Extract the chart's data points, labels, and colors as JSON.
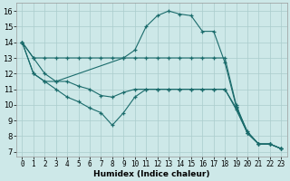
{
  "xlabel": "Humidex (Indice chaleur)",
  "bg_color": "#cde8e8",
  "grid_color": "#aacccc",
  "line_color": "#1a6b6b",
  "xlim": [
    -0.5,
    23.5
  ],
  "ylim": [
    6.7,
    16.5
  ],
  "xticks": [
    0,
    1,
    2,
    3,
    4,
    5,
    6,
    7,
    8,
    9,
    10,
    11,
    12,
    13,
    14,
    15,
    16,
    17,
    18,
    19,
    20,
    21,
    22,
    23
  ],
  "yticks": [
    7,
    8,
    9,
    10,
    11,
    12,
    13,
    14,
    15,
    16
  ],
  "series1": {
    "x": [
      0,
      1,
      2,
      3,
      4,
      5,
      6,
      7,
      8,
      9,
      10,
      11,
      12,
      13,
      14,
      15,
      16,
      17,
      18,
      19,
      20,
      21,
      22,
      23
    ],
    "y": [
      14,
      13,
      13,
      13,
      13,
      13,
      13,
      13,
      13,
      13,
      13,
      13,
      13,
      13,
      13,
      13,
      13,
      13,
      13,
      10,
      8.2,
      7.5,
      7.5,
      7.2
    ]
  },
  "series2": {
    "x": [
      0,
      1,
      2,
      3,
      4,
      5,
      6,
      7,
      8,
      9,
      10,
      11,
      12,
      13,
      14,
      15,
      16,
      17,
      18,
      19,
      20,
      21,
      22,
      23
    ],
    "y": [
      14,
      12,
      11.5,
      11.5,
      11.5,
      11.2,
      11.0,
      10.6,
      10.5,
      10.8,
      11.0,
      11.0,
      11.0,
      11.0,
      11.0,
      11.0,
      11.0,
      11.0,
      11.0,
      9.8,
      8.2,
      7.5,
      7.5,
      7.2
    ]
  },
  "series3": {
    "x": [
      0,
      1,
      2,
      3,
      4,
      5,
      6,
      7,
      8,
      9,
      10,
      11,
      12,
      13,
      14,
      15,
      16,
      17,
      18,
      19,
      20,
      21,
      22,
      23
    ],
    "y": [
      14,
      12,
      11.5,
      11.0,
      10.5,
      10.2,
      9.8,
      9.5,
      8.7,
      9.5,
      10.5,
      11.0,
      11.0,
      11.0,
      11.0,
      11.0,
      11.0,
      11.0,
      11.0,
      9.7,
      8.2,
      7.5,
      7.5,
      7.2
    ]
  },
  "series4": {
    "x": [
      0,
      1,
      2,
      3,
      9,
      10,
      11,
      12,
      13,
      14,
      15,
      16,
      17,
      18,
      19,
      20,
      21,
      22,
      23
    ],
    "y": [
      14,
      13,
      12,
      11.5,
      13,
      13.5,
      15,
      15.7,
      16,
      15.8,
      15.7,
      14.7,
      14.7,
      12.7,
      9.9,
      8.3,
      7.5,
      7.5,
      7.2
    ]
  },
  "xlabel_fontsize": 6.5,
  "tick_fontsize": 5.5
}
